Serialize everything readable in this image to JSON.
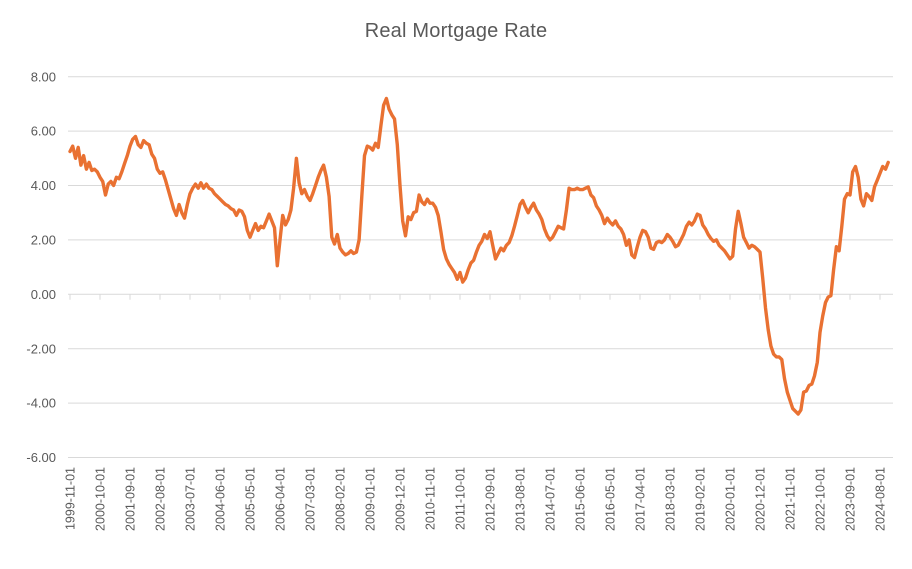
{
  "title": "Real Mortgage Rate",
  "colors": {
    "line": "#E97132",
    "title_text": "#595959",
    "axis_text": "#595959",
    "gridline": "#D9D9D9"
  },
  "chart_data": {
    "type": "line",
    "title": "Real Mortgage Rate",
    "xlabel": "",
    "ylabel": "",
    "x_start": "1999-11-01",
    "frequency": "monthly",
    "x_tick_interval_months": 11,
    "grid": "horizontal",
    "legend": "none",
    "ylim": [
      -6,
      8
    ],
    "y_tick_labels": [
      "8.00",
      "6.00",
      "4.00",
      "2.00",
      "0.00",
      "-2.00",
      "-4.00",
      "-6.00"
    ],
    "y_tick_values": [
      8,
      6,
      4,
      2,
      0,
      -2,
      -4,
      -6
    ],
    "x_tick_labels": [
      "1999-11-01",
      "2000-10-01",
      "2001-09-01",
      "2002-08-01",
      "2003-07-01",
      "2004-06-01",
      "2005-05-01",
      "2006-04-01",
      "2007-03-01",
      "2008-02-01",
      "2009-01-01",
      "2009-12-01",
      "2010-11-01",
      "2011-10-01",
      "2012-09-01",
      "2013-08-01",
      "2014-07-01",
      "2015-06-01",
      "2016-05-01",
      "2017-04-01",
      "2018-03-01",
      "2019-02-01",
      "2020-01-01",
      "2020-12-01",
      "2021-11-01",
      "2022-10-01",
      "2023-09-01",
      "2024-08-01"
    ],
    "series": [
      {
        "name": "Real Mortgage Rate",
        "color": "#E97132",
        "values": [
          5.25,
          5.45,
          5.0,
          5.4,
          4.75,
          5.1,
          4.6,
          4.85,
          4.55,
          4.6,
          4.5,
          4.3,
          4.15,
          3.65,
          4.05,
          4.15,
          4.0,
          4.3,
          4.25,
          4.5,
          4.8,
          5.1,
          5.45,
          5.7,
          5.8,
          5.5,
          5.4,
          5.65,
          5.55,
          5.5,
          5.15,
          5.0,
          4.6,
          4.45,
          4.5,
          4.2,
          3.85,
          3.5,
          3.15,
          2.9,
          3.3,
          3.0,
          2.8,
          3.3,
          3.7,
          3.9,
          4.05,
          3.9,
          4.1,
          3.9,
          4.05,
          3.9,
          3.85,
          3.7,
          3.6,
          3.5,
          3.4,
          3.3,
          3.25,
          3.15,
          3.1,
          2.9,
          3.1,
          3.05,
          2.85,
          2.35,
          2.1,
          2.35,
          2.6,
          2.35,
          2.5,
          2.45,
          2.7,
          2.95,
          2.7,
          2.45,
          1.05,
          2.0,
          2.9,
          2.55,
          2.75,
          3.1,
          3.9,
          5.0,
          4.1,
          3.7,
          3.85,
          3.6,
          3.45,
          3.7,
          4.0,
          4.3,
          4.55,
          4.75,
          4.3,
          3.6,
          2.1,
          1.85,
          2.2,
          1.7,
          1.55,
          1.45,
          1.5,
          1.6,
          1.5,
          1.55,
          2.0,
          3.6,
          5.1,
          5.45,
          5.4,
          5.3,
          5.55,
          5.4,
          6.2,
          6.95,
          7.2,
          6.8,
          6.6,
          6.45,
          5.5,
          4.0,
          2.7,
          2.15,
          2.85,
          2.75,
          3.0,
          3.05,
          3.65,
          3.4,
          3.3,
          3.5,
          3.35,
          3.35,
          3.2,
          2.9,
          2.3,
          1.65,
          1.3,
          1.1,
          0.95,
          0.8,
          0.55,
          0.8,
          0.45,
          0.6,
          0.9,
          1.15,
          1.25,
          1.55,
          1.8,
          1.95,
          2.2,
          2.05,
          2.3,
          1.8,
          1.3,
          1.5,
          1.7,
          1.6,
          1.8,
          1.9,
          2.15,
          2.5,
          2.9,
          3.3,
          3.45,
          3.2,
          3.0,
          3.2,
          3.35,
          3.1,
          2.95,
          2.75,
          2.4,
          2.15,
          2.0,
          2.1,
          2.3,
          2.5,
          2.45,
          2.4,
          3.1,
          3.9,
          3.85,
          3.85,
          3.9,
          3.85,
          3.85,
          3.9,
          3.95,
          3.65,
          3.55,
          3.25,
          3.1,
          2.9,
          2.6,
          2.8,
          2.65,
          2.55,
          2.7,
          2.5,
          2.4,
          2.2,
          1.8,
          2.0,
          1.45,
          1.35,
          1.75,
          2.1,
          2.35,
          2.3,
          2.1,
          1.7,
          1.65,
          1.9,
          1.95,
          1.9,
          2.0,
          2.2,
          2.1,
          1.95,
          1.75,
          1.8,
          2.0,
          2.2,
          2.5,
          2.65,
          2.55,
          2.7,
          2.95,
          2.9,
          2.55,
          2.4,
          2.2,
          2.05,
          1.95,
          2.0,
          1.8,
          1.7,
          1.6,
          1.45,
          1.3,
          1.4,
          2.4,
          3.05,
          2.6,
          2.1,
          1.9,
          1.7,
          1.8,
          1.75,
          1.65,
          1.55,
          0.6,
          -0.5,
          -1.3,
          -1.9,
          -2.2,
          -2.3,
          -2.3,
          -2.4,
          -3.1,
          -3.6,
          -3.9,
          -4.2,
          -4.3,
          -4.4,
          -4.25,
          -3.6,
          -3.55,
          -3.35,
          -3.3,
          -3.0,
          -2.5,
          -1.4,
          -0.8,
          -0.3,
          -0.1,
          -0.05,
          0.9,
          1.75,
          1.6,
          2.5,
          3.5,
          3.7,
          3.65,
          4.5,
          4.7,
          4.3,
          3.5,
          3.25,
          3.7,
          3.6,
          3.45,
          3.95,
          4.2,
          4.45,
          4.7,
          4.6,
          4.85
        ]
      }
    ]
  }
}
